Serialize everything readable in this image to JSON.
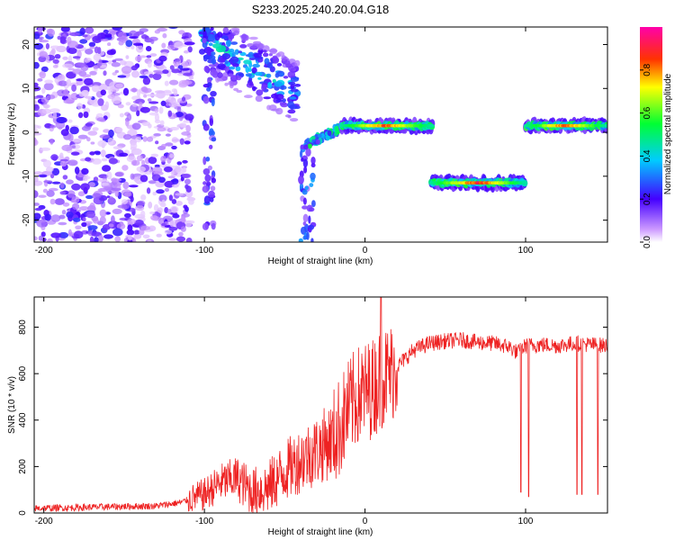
{
  "figure_title": "S233.2025.240.20.04.G18",
  "chart_data": [
    {
      "type": "heatmap",
      "title": "",
      "xlabel": "Height of straight line (km)",
      "ylabel": "Frequency (Hz)",
      "xlim": [
        -206,
        151
      ],
      "ylim": [
        -25,
        24
      ],
      "xticks": [
        -200,
        -100,
        0,
        100
      ],
      "yticks": [
        -20,
        -10,
        0,
        10,
        20
      ],
      "grid": false,
      "colorbar": {
        "label": "Normalized spectral amplitude",
        "range": [
          0,
          1
        ],
        "ticks": [
          0.0,
          0.2,
          0.4,
          0.6,
          0.8
        ]
      },
      "features": [
        {
          "x_range": [
            -206,
            -108
          ],
          "frequency_range": [
            -25,
            24
          ],
          "amplitude": "scattered low (noise)"
        },
        {
          "x_range": [
            -102,
            -40
          ],
          "frequency_range": [
            6,
            22
          ],
          "amplitude": "diagonal band, up to 0.5"
        },
        {
          "x_range": [
            -37,
            -15
          ],
          "frequency_range": [
            -3,
            1
          ],
          "amplitude": "rising ridge, up to 0.6"
        },
        {
          "x_range": [
            -15,
            42
          ],
          "frequency_center": 1.5,
          "amplitude": "strong line, up to 0.9"
        },
        {
          "x_range": [
            41,
            100
          ],
          "frequency_center": -11.5,
          "amplitude": "strong line, up to 0.95"
        },
        {
          "x_range": [
            100,
            151
          ],
          "frequency_center": 1.5,
          "amplitude": "strong line, up to 0.9"
        }
      ]
    },
    {
      "type": "line",
      "title": "",
      "xlabel": "Height of straight line (km)",
      "ylabel": "SNR (10 * v/v)",
      "xlim": [
        -206,
        151
      ],
      "ylim": [
        0,
        930
      ],
      "xticks": [
        -200,
        -100,
        0,
        100
      ],
      "yticks": [
        0,
        200,
        400,
        600,
        800
      ],
      "grid": false,
      "series": [
        {
          "color": "#ee2222",
          "x": [
            -206,
            -190,
            -170,
            -150,
            -130,
            -115,
            -100,
            -90,
            -80,
            -70,
            -60,
            -50,
            -40,
            -30,
            -20,
            -15,
            -10,
            -5,
            0,
            5,
            10,
            15,
            20,
            30,
            40,
            50,
            60,
            70,
            80,
            90,
            95,
            100,
            110,
            120,
            130,
            140,
            151
          ],
          "y": [
            20,
            22,
            25,
            28,
            30,
            45,
            80,
            130,
            150,
            90,
            110,
            180,
            230,
            270,
            320,
            380,
            450,
            500,
            520,
            540,
            580,
            600,
            630,
            700,
            730,
            740,
            745,
            735,
            730,
            715,
            690,
            720,
            725,
            720,
            730,
            725,
            720
          ]
        }
      ],
      "dropouts": [
        {
          "x": 97,
          "y": 90
        },
        {
          "x": 102,
          "y": 70
        },
        {
          "x": 132,
          "y": 80
        },
        {
          "x": 135,
          "y": 80
        },
        {
          "x": 145,
          "y": 80
        }
      ],
      "spikes": [
        {
          "x": 10,
          "y": 930
        }
      ]
    }
  ]
}
